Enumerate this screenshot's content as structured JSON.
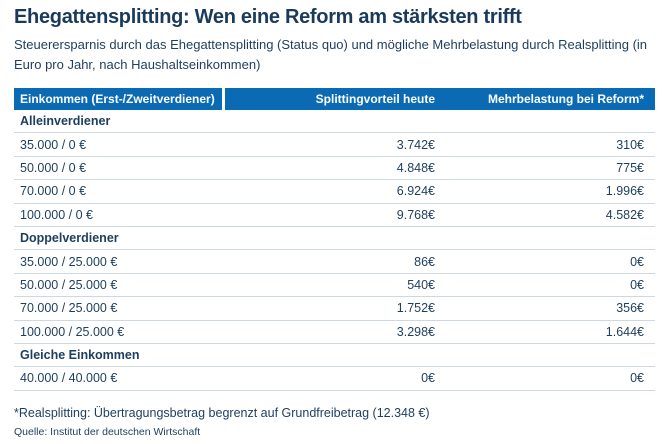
{
  "title": "Ehegattensplitting: Wen eine Reform am stärksten trifft",
  "subtitle": "Steuerersparnis durch das Ehegattensplitting (Status quo) und mögliche Mehrbelastung durch Realsplitting (in Euro pro Jahr, nach Haushaltseinkommen)",
  "table": {
    "columns": [
      "Einkommen (Erst-/Zweitverdiener)",
      "Splittingvorteil heute",
      "Mehrbelastung bei Reform*"
    ],
    "sections": [
      {
        "label": "Alleinverdiener",
        "rows": [
          {
            "income": "35.000 / 0 €",
            "advantage": "3.742€",
            "burden": "310€"
          },
          {
            "income": "50.000 / 0 €",
            "advantage": "4.848€",
            "burden": "775€"
          },
          {
            "income": "70.000 / 0 €",
            "advantage": "6.924€",
            "burden": "1.996€"
          },
          {
            "income": "100.000 / 0 €",
            "advantage": "9.768€",
            "burden": "4.582€"
          }
        ]
      },
      {
        "label": "Doppelverdiener",
        "rows": [
          {
            "income": "35.000 / 25.000 €",
            "advantage": "86€",
            "burden": "0€"
          },
          {
            "income": "50.000 / 25.000 €",
            "advantage": "540€",
            "burden": "0€"
          },
          {
            "income": "70.000 / 25.000 €",
            "advantage": "1.752€",
            "burden": "356€"
          },
          {
            "income": "100.000 / 25.000 €",
            "advantage": "3.298€",
            "burden": "1.644€"
          }
        ]
      },
      {
        "label": "Gleiche Einkommen",
        "rows": [
          {
            "income": "40.000 / 40.000 €",
            "advantage": "0€",
            "burden": "0€"
          }
        ]
      }
    ]
  },
  "footnote": "*Realsplitting: Übertragungsbetrag begrenzt auf Grundfreibetrag (12.348 €)",
  "source": "Quelle: Institut der deutschen Wirtschaft",
  "colors": {
    "header_bg": "#0b6ab4",
    "text": "#1d3e5e",
    "divider": "#cdd8e4"
  },
  "chart_data": {
    "type": "table",
    "title": "Ehegattensplitting: Wen eine Reform am stärksten trifft",
    "subtitle": "Steuerersparnis durch das Ehegattensplitting (Status quo) und mögliche Mehrbelastung durch Realsplitting",
    "unit": "Euro pro Jahr",
    "categories": [
      "35.000 / 0",
      "50.000 / 0",
      "70.000 / 0",
      "100.000 / 0",
      "35.000 / 25.000",
      "50.000 / 25.000",
      "70.000 / 25.000",
      "100.000 / 25.000",
      "40.000 / 40.000"
    ],
    "groups": [
      "Alleinverdiener",
      "Alleinverdiener",
      "Alleinverdiener",
      "Alleinverdiener",
      "Doppelverdiener",
      "Doppelverdiener",
      "Doppelverdiener",
      "Doppelverdiener",
      "Gleiche Einkommen"
    ],
    "series": [
      {
        "name": "Splittingvorteil heute",
        "values": [
          3742,
          4848,
          6924,
          9768,
          86,
          540,
          1752,
          3298,
          0
        ]
      },
      {
        "name": "Mehrbelastung bei Reform",
        "values": [
          310,
          775,
          1996,
          4582,
          0,
          0,
          356,
          1644,
          0
        ]
      }
    ]
  }
}
